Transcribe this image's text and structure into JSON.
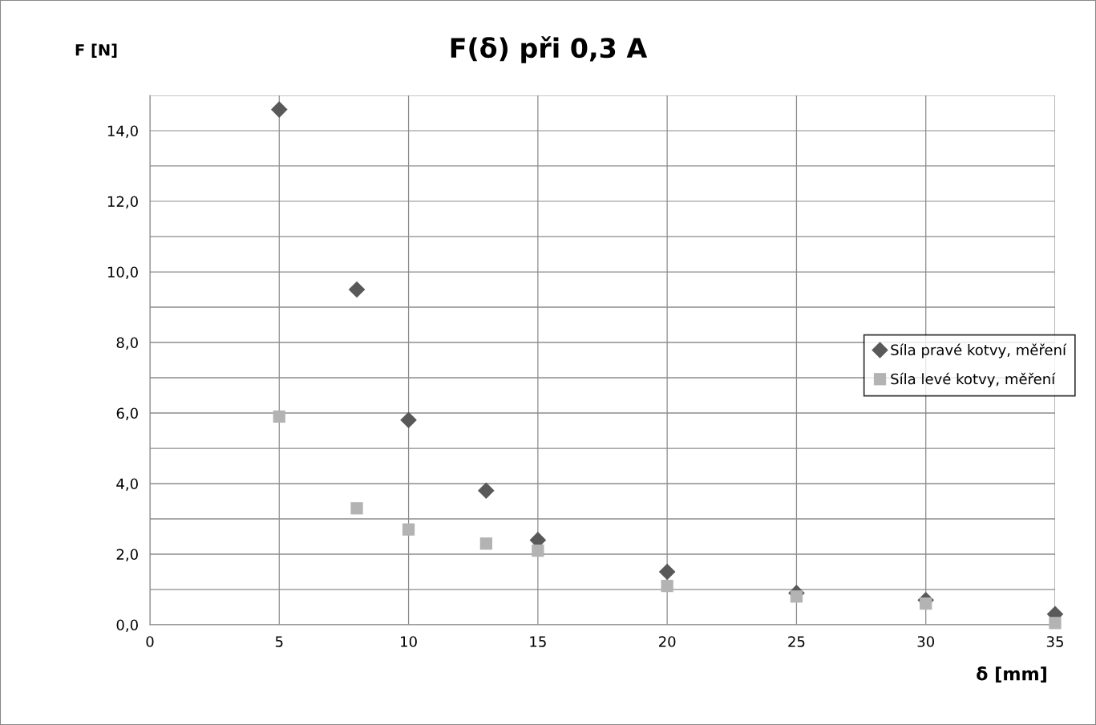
{
  "chart_data": {
    "type": "scatter",
    "title": "F(δ) při 0,3 A",
    "xlabel": "δ [mm]",
    "ylabel": "F [N]",
    "xlim": [
      0,
      35
    ],
    "xticks": [
      0,
      5,
      10,
      15,
      20,
      25,
      30,
      35
    ],
    "ylim": [
      0,
      15
    ],
    "yticks": [
      {
        "value": 0,
        "label": "0,0"
      },
      {
        "value": 1,
        "label": null
      },
      {
        "value": 2,
        "label": "2,0"
      },
      {
        "value": 3,
        "label": null
      },
      {
        "value": 4,
        "label": "4,0"
      },
      {
        "value": 5,
        "label": null
      },
      {
        "value": 6,
        "label": "6,0"
      },
      {
        "value": 7,
        "label": null
      },
      {
        "value": 8,
        "label": "8,0"
      },
      {
        "value": 9,
        "label": null
      },
      {
        "value": 10,
        "label": "10,0"
      },
      {
        "value": 11,
        "label": null
      },
      {
        "value": 12,
        "label": "12,0"
      },
      {
        "value": 13,
        "label": null
      },
      {
        "value": 14,
        "label": "14,0"
      },
      {
        "value": 15,
        "label": null
      }
    ],
    "grid": true,
    "legend": "right",
    "series": [
      {
        "name": "Síla pravé kotvy, měření",
        "color": "#595959",
        "marker": "diamond",
        "x": [
          5,
          8,
          10,
          13,
          15,
          20,
          25,
          30,
          35
        ],
        "values": [
          14.6,
          9.5,
          5.8,
          3.8,
          2.4,
          1.5,
          0.9,
          0.7,
          0.3
        ]
      },
      {
        "name": "Síla levé kotvy, měření",
        "color": "#b3b3b3",
        "marker": "square",
        "x": [
          5,
          8,
          10,
          13,
          15,
          20,
          25,
          30,
          35
        ],
        "values": [
          5.9,
          3.3,
          2.7,
          2.3,
          2.1,
          1.1,
          0.8,
          0.6,
          0.05
        ]
      }
    ]
  }
}
